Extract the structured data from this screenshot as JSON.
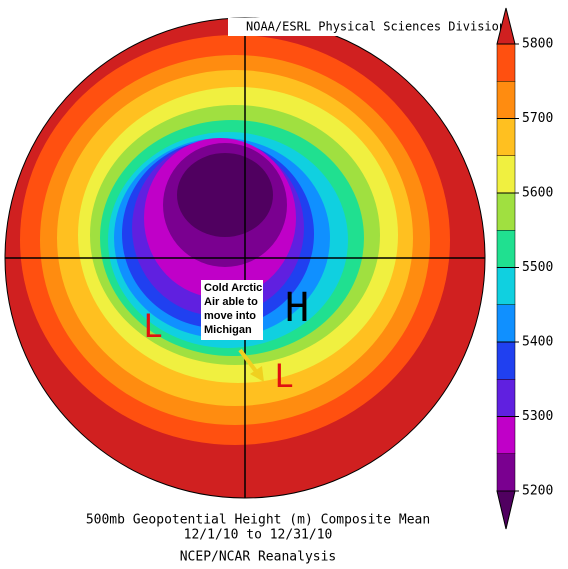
{
  "header": {
    "title": "NOAA/ESRL Physical Sciences Division"
  },
  "colorbar": {
    "ticks": [
      5200,
      5300,
      5400,
      5500,
      5600,
      5700,
      5800
    ],
    "colors": [
      "#500060",
      "#7a0090",
      "#c000c8",
      "#6020e0",
      "#2040f0",
      "#1090ff",
      "#10d0e0",
      "#20e090",
      "#a0e040",
      "#f0f040",
      "#ffc020",
      "#ff8c10",
      "#ff5010",
      "#d02020"
    ]
  },
  "annotations": {
    "note": [
      "Cold Arctic",
      "Air able to",
      "move into",
      "Michigan"
    ],
    "high": "H",
    "low_west": "L",
    "low_east": "L"
  },
  "caption": {
    "line1": "500mb Geopotential Height (m) Composite Mean",
    "line2": "12/1/10  to 12/31/10",
    "line3": "NCEP/NCAR Reanalysis"
  }
}
